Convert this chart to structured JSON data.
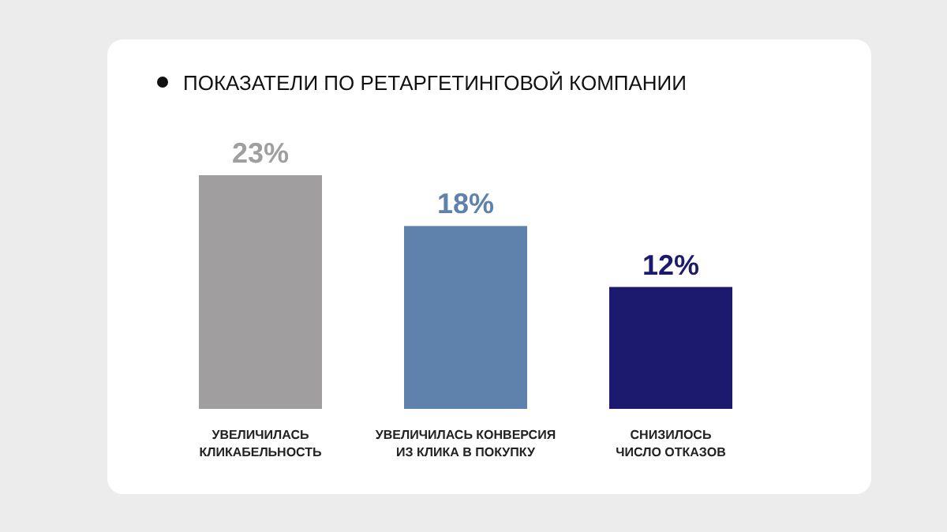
{
  "chart_data": {
    "type": "bar",
    "title": "ПОКАЗАТЕЛИ ПО РЕТАРГЕТИНГОВОЙ КОМПАНИИ",
    "categories": [
      "УВЕЛИЧИЛАСЬ\nКЛИКАБЕЛЬНОСТЬ",
      "УВЕЛИЧИЛАСЬ КОНВЕРСИЯ\nИЗ КЛИКА В ПОКУПКУ",
      "СНИЗИЛОСЬ\nЧИСЛО ОТКАЗОВ"
    ],
    "values": [
      23,
      18,
      12
    ],
    "colors": [
      "#a09e9f",
      "#5f82ad",
      "#1c1a6e"
    ],
    "value_labels": [
      "23%",
      "18%",
      "12%"
    ]
  }
}
